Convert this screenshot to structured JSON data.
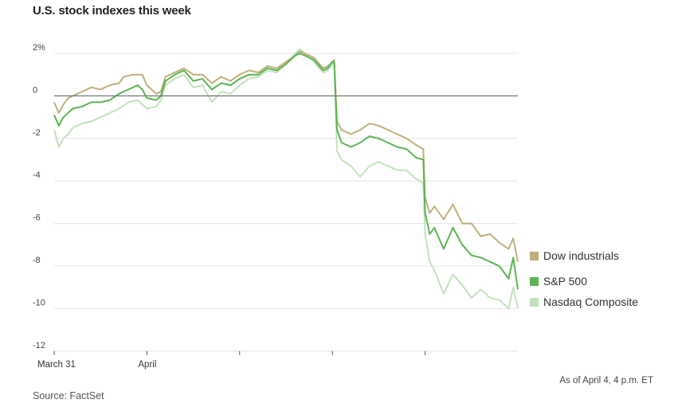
{
  "title": "U.S. stock indexes this week",
  "note": "As of April 4, 4 p.m. ET",
  "source": "Source: FactSet",
  "chart_data": {
    "type": "line",
    "title": "U.S. stock indexes this week",
    "xlabel": "",
    "ylabel": "",
    "x_unit": "trading day index (0 = March 31 open, 5 = April 4 close)",
    "xlim": [
      0,
      5
    ],
    "ylim": [
      -12,
      2.5
    ],
    "y_ticks": [
      {
        "value": 2,
        "label": "2%"
      },
      {
        "value": 0,
        "label": "0"
      },
      {
        "value": -2,
        "label": "-2"
      },
      {
        "value": -4,
        "label": "-4"
      },
      {
        "value": -6,
        "label": "-6"
      },
      {
        "value": -8,
        "label": "-8"
      },
      {
        "value": -10,
        "label": "-10"
      },
      {
        "value": -12,
        "label": "-12"
      }
    ],
    "x_ticks": [
      {
        "value": 0,
        "label": "March 31"
      },
      {
        "value": 1,
        "label": "April"
      },
      {
        "value": 2,
        "label": ""
      },
      {
        "value": 3,
        "label": ""
      },
      {
        "value": 4,
        "label": ""
      }
    ],
    "grid": true,
    "legend_position": "right",
    "series": [
      {
        "name": "Dow industrials",
        "color": "#bfb07a",
        "points": [
          [
            0,
            -0.3
          ],
          [
            0.05,
            -0.8
          ],
          [
            0.1,
            -0.4
          ],
          [
            0.15,
            -0.1
          ],
          [
            0.2,
            0
          ],
          [
            0.3,
            0.2
          ],
          [
            0.4,
            0.4
          ],
          [
            0.5,
            0.3
          ],
          [
            0.6,
            0.5
          ],
          [
            0.7,
            0.6
          ],
          [
            0.75,
            0.9
          ],
          [
            0.85,
            1.0
          ],
          [
            0.95,
            1.0
          ],
          [
            1.0,
            0.5
          ],
          [
            1.1,
            0.1
          ],
          [
            1.15,
            0.2
          ],
          [
            1.2,
            0.9
          ],
          [
            1.3,
            1.1
          ],
          [
            1.4,
            1.3
          ],
          [
            1.5,
            1.0
          ],
          [
            1.6,
            1.0
          ],
          [
            1.7,
            0.6
          ],
          [
            1.8,
            0.9
          ],
          [
            1.9,
            0.7
          ],
          [
            2.0,
            1.0
          ],
          [
            2.1,
            1.2
          ],
          [
            2.2,
            1.1
          ],
          [
            2.3,
            1.4
          ],
          [
            2.4,
            1.3
          ],
          [
            2.5,
            1.6
          ],
          [
            2.6,
            1.9
          ],
          [
            2.65,
            2.1
          ],
          [
            2.7,
            2.0
          ],
          [
            2.8,
            1.8
          ],
          [
            2.9,
            1.3
          ],
          [
            2.95,
            1.4
          ],
          [
            3.0,
            1.6
          ],
          [
            3.02,
            1.7
          ],
          [
            3.05,
            -1.2
          ],
          [
            3.1,
            -1.6
          ],
          [
            3.2,
            -1.8
          ],
          [
            3.3,
            -1.6
          ],
          [
            3.4,
            -1.3
          ],
          [
            3.5,
            -1.4
          ],
          [
            3.6,
            -1.6
          ],
          [
            3.7,
            -1.8
          ],
          [
            3.8,
            -2.0
          ],
          [
            3.9,
            -2.3
          ],
          [
            3.98,
            -2.5
          ],
          [
            4.0,
            -4.8
          ],
          [
            4.05,
            -5.5
          ],
          [
            4.1,
            -5.2
          ],
          [
            4.2,
            -5.8
          ],
          [
            4.3,
            -5.1
          ],
          [
            4.4,
            -6.0
          ],
          [
            4.5,
            -6.0
          ],
          [
            4.6,
            -6.6
          ],
          [
            4.7,
            -6.5
          ],
          [
            4.8,
            -6.9
          ],
          [
            4.9,
            -7.2
          ],
          [
            4.95,
            -6.7
          ],
          [
            5.0,
            -7.8
          ]
        ]
      },
      {
        "name": "S&P 500",
        "color": "#5ab552",
        "points": [
          [
            0,
            -0.9
          ],
          [
            0.05,
            -1.4
          ],
          [
            0.1,
            -1.0
          ],
          [
            0.15,
            -0.8
          ],
          [
            0.2,
            -0.6
          ],
          [
            0.3,
            -0.5
          ],
          [
            0.4,
            -0.3
          ],
          [
            0.5,
            -0.3
          ],
          [
            0.6,
            -0.2
          ],
          [
            0.7,
            0.1
          ],
          [
            0.8,
            0.3
          ],
          [
            0.9,
            0.5
          ],
          [
            0.95,
            0.3
          ],
          [
            1.0,
            -0.1
          ],
          [
            1.1,
            -0.2
          ],
          [
            1.15,
            0
          ],
          [
            1.2,
            0.7
          ],
          [
            1.3,
            1.0
          ],
          [
            1.4,
            1.2
          ],
          [
            1.5,
            0.7
          ],
          [
            1.6,
            0.8
          ],
          [
            1.7,
            0.3
          ],
          [
            1.8,
            0.6
          ],
          [
            1.9,
            0.5
          ],
          [
            2.0,
            0.8
          ],
          [
            2.1,
            1.0
          ],
          [
            2.2,
            1.0
          ],
          [
            2.3,
            1.3
          ],
          [
            2.4,
            1.2
          ],
          [
            2.5,
            1.5
          ],
          [
            2.6,
            1.9
          ],
          [
            2.65,
            2.0
          ],
          [
            2.7,
            1.9
          ],
          [
            2.8,
            1.7
          ],
          [
            2.9,
            1.2
          ],
          [
            2.95,
            1.3
          ],
          [
            3.0,
            1.6
          ],
          [
            3.02,
            1.6
          ],
          [
            3.05,
            -1.6
          ],
          [
            3.1,
            -2.2
          ],
          [
            3.2,
            -2.4
          ],
          [
            3.3,
            -2.2
          ],
          [
            3.4,
            -1.9
          ],
          [
            3.5,
            -2.0
          ],
          [
            3.6,
            -2.2
          ],
          [
            3.7,
            -2.4
          ],
          [
            3.8,
            -2.5
          ],
          [
            3.9,
            -2.9
          ],
          [
            3.98,
            -3.0
          ],
          [
            4.0,
            -5.5
          ],
          [
            4.05,
            -6.5
          ],
          [
            4.1,
            -6.2
          ],
          [
            4.2,
            -7.2
          ],
          [
            4.3,
            -6.2
          ],
          [
            4.4,
            -7.0
          ],
          [
            4.5,
            -7.5
          ],
          [
            4.6,
            -7.6
          ],
          [
            4.7,
            -7.8
          ],
          [
            4.8,
            -8.0
          ],
          [
            4.9,
            -8.6
          ],
          [
            4.95,
            -7.6
          ],
          [
            5.0,
            -9.1
          ]
        ]
      },
      {
        "name": "Nasdaq Composite",
        "color": "#c2e2bc",
        "points": [
          [
            0,
            -1.6
          ],
          [
            0.05,
            -2.4
          ],
          [
            0.1,
            -2.0
          ],
          [
            0.15,
            -1.8
          ],
          [
            0.2,
            -1.5
          ],
          [
            0.3,
            -1.3
          ],
          [
            0.4,
            -1.2
          ],
          [
            0.5,
            -1.0
          ],
          [
            0.6,
            -0.8
          ],
          [
            0.7,
            -0.6
          ],
          [
            0.8,
            -0.3
          ],
          [
            0.9,
            -0.2
          ],
          [
            0.95,
            -0.4
          ],
          [
            1.0,
            -0.6
          ],
          [
            1.1,
            -0.5
          ],
          [
            1.15,
            -0.2
          ],
          [
            1.2,
            0.5
          ],
          [
            1.3,
            0.8
          ],
          [
            1.4,
            1.0
          ],
          [
            1.5,
            0.4
          ],
          [
            1.6,
            0.5
          ],
          [
            1.7,
            -0.3
          ],
          [
            1.8,
            0.2
          ],
          [
            1.9,
            0.1
          ],
          [
            2.0,
            0.5
          ],
          [
            2.1,
            0.8
          ],
          [
            2.2,
            0.9
          ],
          [
            2.3,
            1.2
          ],
          [
            2.4,
            1.1
          ],
          [
            2.5,
            1.5
          ],
          [
            2.6,
            2.0
          ],
          [
            2.65,
            2.2
          ],
          [
            2.7,
            2.0
          ],
          [
            2.8,
            1.6
          ],
          [
            2.9,
            1.1
          ],
          [
            2.95,
            1.2
          ],
          [
            3.0,
            1.5
          ],
          [
            3.02,
            1.6
          ],
          [
            3.05,
            -2.6
          ],
          [
            3.1,
            -3.0
          ],
          [
            3.2,
            -3.3
          ],
          [
            3.3,
            -3.8
          ],
          [
            3.4,
            -3.3
          ],
          [
            3.5,
            -3.1
          ],
          [
            3.6,
            -3.3
          ],
          [
            3.7,
            -3.5
          ],
          [
            3.8,
            -3.5
          ],
          [
            3.9,
            -3.9
          ],
          [
            3.98,
            -4.1
          ],
          [
            4.0,
            -6.5
          ],
          [
            4.05,
            -7.8
          ],
          [
            4.1,
            -8.2
          ],
          [
            4.2,
            -9.3
          ],
          [
            4.3,
            -8.4
          ],
          [
            4.4,
            -8.9
          ],
          [
            4.5,
            -9.5
          ],
          [
            4.6,
            -9.1
          ],
          [
            4.7,
            -9.5
          ],
          [
            4.8,
            -9.6
          ],
          [
            4.9,
            -10.0
          ],
          [
            4.95,
            -9.0
          ],
          [
            5.0,
            -10.0
          ]
        ]
      }
    ]
  }
}
